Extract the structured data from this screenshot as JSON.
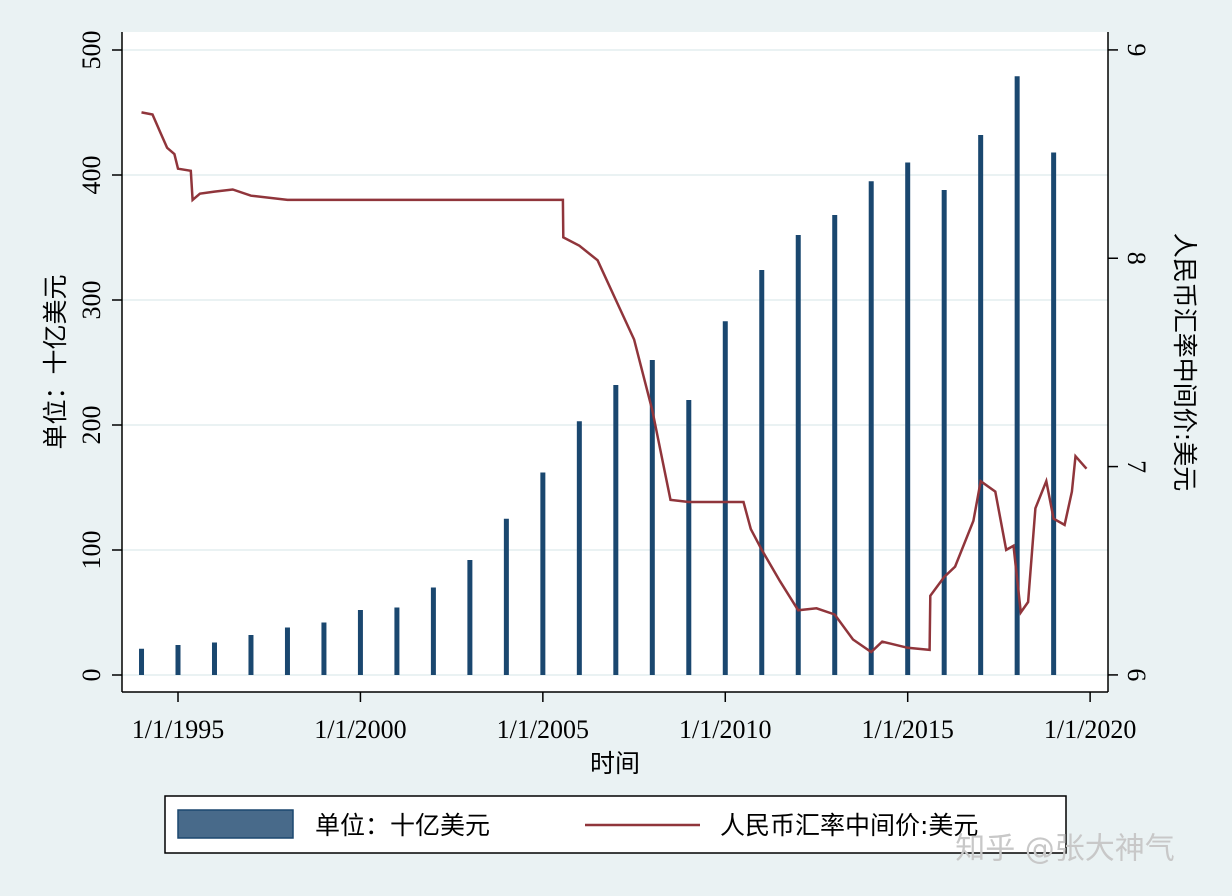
{
  "chart_data": {
    "type": "bar-line",
    "x_label": "时间",
    "y_label": "单位：十亿美元",
    "y2_label": "人民币汇率中间价:美元",
    "watermark": "知乎 @张大神气",
    "xlim": [
      1993.465,
      2020.49
    ],
    "xticks": [
      {
        "value": 1995,
        "label": "1/1/1995"
      },
      {
        "value": 2000,
        "label": "1/1/2000"
      },
      {
        "value": 2005,
        "label": "1/1/2005"
      },
      {
        "value": 2010,
        "label": "1/1/2010"
      },
      {
        "value": 2015,
        "label": "1/1/2015"
      },
      {
        "value": 2020,
        "label": "1/1/2020"
      }
    ],
    "ylim": [
      -13.6,
      514.4
    ],
    "yticks": [
      0,
      100,
      200,
      300,
      400,
      500
    ],
    "y2lim": [
      5.918,
      9.086
    ],
    "y2ticks": [
      6,
      7,
      8,
      9
    ],
    "grid": true,
    "legend": "bottom",
    "series": [
      {
        "name": "单位：十亿美元",
        "type": "bar",
        "color": "#1a476f",
        "x": [
          1994,
          1995,
          1996,
          1997,
          1998,
          1999,
          2000,
          2001,
          2002,
          2003,
          2004,
          2005,
          2006,
          2007,
          2008,
          2009,
          2010,
          2011,
          2012,
          2013,
          2014,
          2015,
          2016,
          2017,
          2018,
          2019
        ],
        "values": [
          21,
          24,
          26,
          32,
          38,
          42,
          52,
          54,
          70,
          92,
          125,
          162,
          203,
          232,
          252,
          220,
          283,
          324,
          352,
          368,
          395,
          410,
          388,
          432,
          479,
          418
        ]
      },
      {
        "name": "人民币汇率中间价:美元",
        "type": "line",
        "color": "#90353b",
        "axis": "y2",
        "x": [
          1994.0,
          1994.3,
          1994.5,
          1994.7,
          1994.9,
          1995.0,
          1995.35,
          1995.4,
          1995.6,
          1996.0,
          1996.5,
          1997.0,
          1998.0,
          2000.0,
          2005.55,
          2005.56,
          2006.0,
          2006.5,
          2007.0,
          2007.5,
          2008.0,
          2008.3,
          2008.5,
          2009.0,
          2010.5,
          2010.7,
          2011.0,
          2011.5,
          2012.0,
          2012.5,
          2013.0,
          2013.5,
          2014.0,
          2014.3,
          2015.0,
          2015.6,
          2015.62,
          2016.0,
          2016.3,
          2016.8,
          2017.0,
          2017.4,
          2017.7,
          2017.9,
          2018.1,
          2018.3,
          2018.5,
          2018.8,
          2019.0,
          2019.3,
          2019.5,
          2019.6,
          2019.85,
          2019.9
        ],
        "values": [
          8.7,
          8.69,
          8.61,
          8.53,
          8.5,
          8.43,
          8.42,
          8.28,
          8.31,
          8.32,
          8.33,
          8.3,
          8.28,
          8.28,
          8.28,
          8.1,
          8.06,
          7.99,
          7.8,
          7.61,
          7.27,
          7.01,
          6.84,
          6.83,
          6.83,
          6.7,
          6.6,
          6.45,
          6.31,
          6.32,
          6.29,
          6.17,
          6.11,
          6.16,
          6.13,
          6.12,
          6.38,
          6.47,
          6.52,
          6.74,
          6.93,
          6.88,
          6.6,
          6.62,
          6.3,
          6.35,
          6.8,
          6.93,
          6.75,
          6.72,
          6.88,
          7.05,
          7.0,
          6.99
        ]
      }
    ]
  }
}
